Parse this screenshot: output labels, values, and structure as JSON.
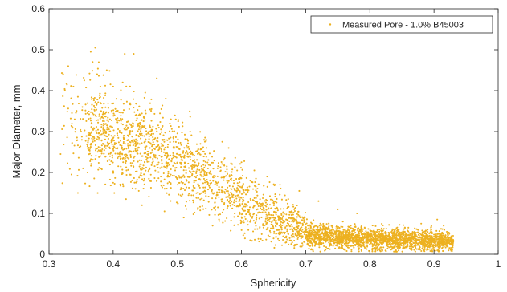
{
  "chart_data": {
    "type": "scatter",
    "xlabel": "Sphericity",
    "ylabel": "Major Diameter, mm",
    "xlim": [
      0.3,
      1
    ],
    "ylim": [
      0,
      0.6
    ],
    "xticks": [
      "0.3",
      "0.4",
      "0.5",
      "0.6",
      "0.7",
      "0.8",
      "0.9",
      "1"
    ],
    "yticks": [
      "0",
      "0.1",
      "0.2",
      "0.3",
      "0.4",
      "0.5",
      "0.6"
    ],
    "grid": false,
    "box": true,
    "legend_position": "top-right",
    "series": [
      {
        "name": "Measured Pore - 1.0% B45003",
        "color": "#EDB120",
        "marker": "point",
        "points": [
          [
            0.318,
            0.245
          ],
          [
            0.322,
            0.44
          ],
          [
            0.328,
            0.415
          ],
          [
            0.33,
            0.46
          ],
          [
            0.335,
            0.195
          ],
          [
            0.338,
            0.41
          ],
          [
            0.345,
            0.385
          ],
          [
            0.352,
            0.36
          ],
          [
            0.355,
            0.425
          ],
          [
            0.36,
            0.345
          ],
          [
            0.365,
            0.495
          ],
          [
            0.368,
            0.47
          ],
          [
            0.372,
            0.505
          ],
          [
            0.375,
            0.44
          ],
          [
            0.38,
            0.41
          ],
          [
            0.39,
            0.45
          ],
          [
            0.395,
            0.33
          ],
          [
            0.4,
            0.41
          ],
          [
            0.405,
            0.38
          ],
          [
            0.418,
            0.49
          ],
          [
            0.425,
            0.355
          ],
          [
            0.432,
            0.49
          ],
          [
            0.44,
            0.34
          ],
          [
            0.45,
            0.395
          ],
          [
            0.458,
            0.31
          ],
          [
            0.468,
            0.43
          ],
          [
            0.475,
            0.355
          ],
          [
            0.49,
            0.33
          ],
          [
            0.52,
            0.3
          ],
          [
            0.545,
            0.28
          ],
          [
            0.42,
            0.135
          ],
          [
            0.445,
            0.12
          ],
          [
            0.48,
            0.105
          ],
          [
            0.51,
            0.09
          ],
          [
            0.555,
            0.07
          ],
          [
            0.345,
            0.15
          ],
          [
            0.36,
            0.2
          ],
          [
            0.38,
            0.24
          ],
          [
            0.35,
            0.3
          ],
          [
            0.34,
            0.33
          ],
          [
            0.905,
            0.085
          ],
          [
            0.915,
            0.07
          ],
          [
            0.92,
            0.055
          ],
          [
            0.925,
            0.035
          ],
          [
            0.93,
            0.03
          ],
          [
            0.88,
            0.075
          ],
          [
            0.86,
            0.065
          ],
          [
            0.89,
            0.06
          ],
          [
            0.9,
            0.048
          ],
          [
            0.912,
            0.042
          ],
          [
            0.72,
            0.13
          ],
          [
            0.75,
            0.11
          ],
          [
            0.78,
            0.1
          ],
          [
            0.69,
            0.155
          ],
          [
            0.66,
            0.17
          ],
          [
            0.64,
            0.19
          ],
          [
            0.62,
            0.205
          ],
          [
            0.6,
            0.225
          ],
          [
            0.58,
            0.26
          ],
          [
            0.57,
            0.275
          ]
        ],
        "bands": [
          {
            "x": [
              0.32,
              0.36
            ],
            "count": 60,
            "y_center": [
              0.33,
              0.33
            ],
            "y_spread": [
              0.075,
              0.075
            ],
            "y_min": 0.15
          },
          {
            "x": [
              0.36,
              0.45
            ],
            "count": 580,
            "y_center": [
              0.31,
              0.265
            ],
            "y_spread": [
              0.06,
              0.05
            ],
            "y_min": 0.14
          },
          {
            "x": [
              0.45,
              0.55
            ],
            "count": 520,
            "y_center": [
              0.265,
              0.185
            ],
            "y_spread": [
              0.05,
              0.045
            ],
            "y_min": 0.09
          },
          {
            "x": [
              0.55,
              0.65
            ],
            "count": 430,
            "y_center": [
              0.185,
              0.09
            ],
            "y_spread": [
              0.045,
              0.04
            ],
            "y_min": 0.03
          },
          {
            "x": [
              0.65,
              0.7
            ],
            "count": 280,
            "y_center": [
              0.09,
              0.055
            ],
            "y_spread": [
              0.035,
              0.025
            ],
            "y_min": 0.015
          },
          {
            "x": [
              0.7,
              0.93
            ],
            "count": 2100,
            "y_center": [
              0.045,
              0.03
            ],
            "y_spread": [
              0.014,
              0.012
            ],
            "y_min": 0.006
          }
        ]
      }
    ]
  }
}
